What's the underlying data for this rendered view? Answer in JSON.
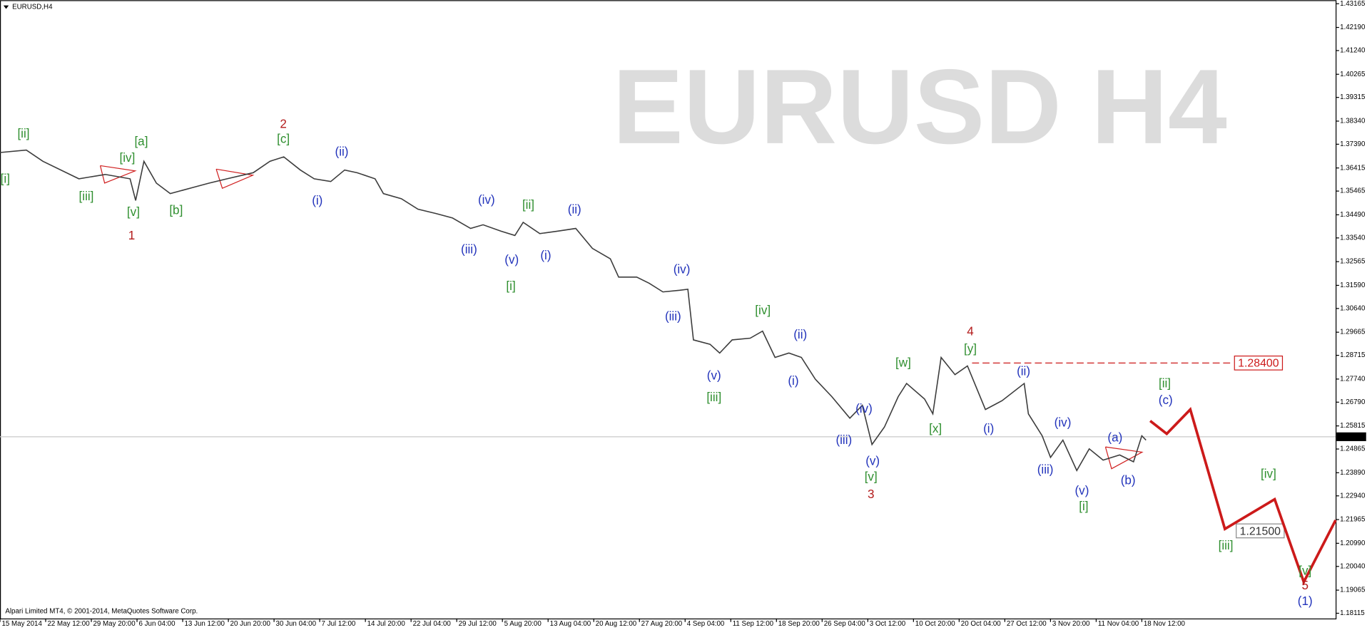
{
  "chart_data": {
    "type": "line",
    "title": "EURUSD,H4",
    "watermark": "EURUSD H4",
    "footer": "Alpari Limited MT4, © 2001-2014, MetaQuotes Software Corp.",
    "grid": false,
    "xlim": [
      0,
      965
    ],
    "xticks": [
      {
        "value": 0,
        "label": "15 May 2014"
      },
      {
        "value": 33,
        "label": "22 May 12:00"
      },
      {
        "value": 66,
        "label": "29 May 20:00"
      },
      {
        "value": 99,
        "label": "6 Jun 04:00"
      },
      {
        "value": 132,
        "label": "13 Jun 12:00"
      },
      {
        "value": 165,
        "label": "20 Jun 20:00"
      },
      {
        "value": 198,
        "label": "30 Jun 04:00"
      },
      {
        "value": 231,
        "label": "7 Jul 12:00"
      },
      {
        "value": 264,
        "label": "14 Jul 20:00"
      },
      {
        "value": 297,
        "label": "22 Jul 04:00"
      },
      {
        "value": 330,
        "label": "29 Jul 12:00"
      },
      {
        "value": 363,
        "label": "5 Aug 20:00"
      },
      {
        "value": 396,
        "label": "13 Aug 04:00"
      },
      {
        "value": 429,
        "label": "20 Aug 12:00"
      },
      {
        "value": 462,
        "label": "27 Aug 20:00"
      },
      {
        "value": 495,
        "label": "4 Sep 04:00"
      },
      {
        "value": 528,
        "label": "11 Sep 12:00"
      },
      {
        "value": 561,
        "label": "18 Sep 20:00"
      },
      {
        "value": 594,
        "label": "26 Sep 04:00"
      },
      {
        "value": 627,
        "label": "3 Oct 12:00"
      },
      {
        "value": 660,
        "label": "10 Oct 20:00"
      },
      {
        "value": 693,
        "label": "20 Oct 04:00"
      },
      {
        "value": 726,
        "label": "27 Oct 12:00"
      },
      {
        "value": 759,
        "label": "3 Nov 20:00"
      },
      {
        "value": 792,
        "label": "11 Nov 04:00"
      },
      {
        "value": 825,
        "label": "18 Nov 12:00"
      }
    ],
    "ylim": [
      1.179,
      1.4331
    ],
    "yticks": [
      1.43165,
      {
        "value": 1.4219,
        "label": "1.42190"
      },
      {
        "value": 1.4124,
        "label": "1.41240"
      },
      1.40265,
      1.39315,
      {
        "value": 1.3834,
        "label": "1.38340"
      },
      {
        "value": 1.3739,
        "label": "1.37390"
      },
      1.36415,
      1.35465,
      {
        "value": 1.3449,
        "label": "1.34490"
      },
      {
        "value": 1.3354,
        "label": "1.33540"
      },
      1.32565,
      {
        "value": 1.3159,
        "label": "1.31590"
      },
      {
        "value": 1.3064,
        "label": "1.30640"
      },
      1.29665,
      1.28715,
      {
        "value": 1.2774,
        "label": "1.27740"
      },
      {
        "value": 1.2679,
        "label": "1.26790"
      },
      1.25815,
      1.24865,
      {
        "value": 1.2389,
        "label": "1.23890"
      },
      {
        "value": 1.2294,
        "label": "1.22940"
      },
      1.21965,
      {
        "value": 1.2099,
        "label": "1.20990"
      },
      {
        "value": 1.2004,
        "label": "1.20040"
      },
      1.19065,
      1.18115
    ],
    "series": [
      {
        "color": "#3c3c3c",
        "x": [
          0,
          19,
          31,
          57,
          76,
          94,
          98,
          104,
          113,
          123,
          139,
          151,
          164,
          183,
          195,
          205,
          217,
          227,
          239,
          249,
          258,
          271,
          277,
          290,
          302,
          315,
          327,
          340,
          349,
          362,
          372,
          378,
          390,
          403,
          416,
          428,
          441,
          447,
          460,
          469,
          479,
          491,
          497,
          501,
          513,
          520,
          529,
          542,
          551,
          560,
          570,
          579,
          589,
          601,
          614,
          623,
          630,
          639,
          649,
          655,
          668,
          674,
          680,
          690,
          699,
          712,
          724,
          740,
          743,
          753,
          759,
          768,
          778,
          787,
          797,
          809,
          819,
          825,
          828
        ],
        "values": [
          1.3705,
          1.3715,
          1.3669,
          1.3597,
          1.3615,
          1.3597,
          1.3508,
          1.3669,
          1.3579,
          1.3536,
          1.3561,
          1.3579,
          1.3597,
          1.3622,
          1.3669,
          1.3687,
          1.3633,
          1.3597,
          1.3586,
          1.3633,
          1.3622,
          1.3597,
          1.3536,
          1.3515,
          1.3472,
          1.3454,
          1.3436,
          1.3393,
          1.3408,
          1.3382,
          1.3364,
          1.3418,
          1.3372,
          1.3382,
          1.3393,
          1.3311,
          1.3268,
          1.3193,
          1.3193,
          1.3168,
          1.3132,
          1.3139,
          1.3143,
          1.2935,
          1.2917,
          1.2881,
          1.2935,
          1.2942,
          1.2971,
          1.2863,
          1.2881,
          1.2863,
          1.2774,
          1.2702,
          1.2613,
          1.2666,
          1.2505,
          1.2577,
          1.2702,
          1.2756,
          1.2692,
          1.2631,
          1.2863,
          1.2792,
          1.2828,
          1.2649,
          1.2685,
          1.2756,
          1.2631,
          1.2541,
          1.2452,
          1.2523,
          1.2398,
          1.2487,
          1.2441,
          1.2462,
          1.2434,
          1.2541,
          1.2523
        ]
      },
      {
        "color": "#cc1a1a",
        "x": [
          831,
          843,
          860,
          885,
          921,
          942,
          965
        ],
        "values": [
          1.2602,
          1.2549,
          1.2649,
          1.2158,
          1.228,
          1.194,
          1.2194
        ]
      }
    ],
    "levels": [
      {
        "value": 1.284,
        "label": "1.28400",
        "color": "#cc1a1a"
      },
      {
        "value": 1.215,
        "label": "1.21500",
        "color": "#8a8a8a"
      }
    ],
    "current_price": 1.25369,
    "annotations": [
      {
        "text": "[i]",
        "color": "#2f8f2f"
      },
      {
        "text": "[ii]",
        "color": "#2f8f2f"
      },
      {
        "text": "[iii]",
        "color": "#2f8f2f"
      },
      {
        "text": "[iv]",
        "color": "#2f8f2f"
      },
      {
        "text": "[v]",
        "color": "#2f8f2f"
      },
      {
        "text": "1",
        "color": "#b31b1b"
      },
      {
        "text": "[a]",
        "color": "#2f8f2f"
      },
      {
        "text": "[b]",
        "color": "#2f8f2f"
      },
      {
        "text": "2",
        "color": "#b31b1b"
      },
      {
        "text": "[c]",
        "color": "#2f8f2f"
      },
      {
        "text": "(ii)",
        "color": "#2233bb"
      },
      {
        "text": "(i)",
        "color": "#2233bb"
      },
      {
        "text": "(iii)",
        "color": "#2233bb"
      },
      {
        "text": "(iv)",
        "color": "#2233bb"
      },
      {
        "text": "(v)",
        "color": "#2233bb"
      },
      {
        "text": "[i]",
        "color": "#2f8f2f"
      },
      {
        "text": "[ii]",
        "color": "#2f8f2f"
      },
      {
        "text": "(i)",
        "color": "#2233bb"
      },
      {
        "text": "(ii)",
        "color": "#2233bb"
      },
      {
        "text": "(iii)",
        "color": "#2233bb"
      },
      {
        "text": "(iv)",
        "color": "#2233bb"
      },
      {
        "text": "(v)",
        "color": "#2233bb"
      },
      {
        "text": "[iii]",
        "color": "#2f8f2f"
      },
      {
        "text": "[iv]",
        "color": "#2f8f2f"
      },
      {
        "text": "(i)",
        "color": "#2233bb"
      },
      {
        "text": "(ii)",
        "color": "#2233bb"
      },
      {
        "text": "(iii)",
        "color": "#2233bb"
      },
      {
        "text": "(iv)",
        "color": "#2233bb"
      },
      {
        "text": "(v)",
        "color": "#2233bb"
      },
      {
        "text": "[v]",
        "color": "#2f8f2f"
      },
      {
        "text": "3",
        "color": "#b31b1b"
      },
      {
        "text": "[w]",
        "color": "#2f8f2f"
      },
      {
        "text": "[x]",
        "color": "#2f8f2f"
      },
      {
        "text": "4",
        "color": "#b31b1b"
      },
      {
        "text": "[y]",
        "color": "#2f8f2f"
      },
      {
        "text": "(i)",
        "color": "#2233bb"
      },
      {
        "text": "(ii)",
        "color": "#2233bb"
      },
      {
        "text": "(iii)",
        "color": "#2233bb"
      },
      {
        "text": "(iv)",
        "color": "#2233bb"
      },
      {
        "text": "(v)",
        "color": "#2233bb"
      },
      {
        "text": "[i]",
        "color": "#2f8f2f"
      },
      {
        "text": "(a)",
        "color": "#2233bb"
      },
      {
        "text": "(b)",
        "color": "#2233bb"
      },
      {
        "text": "[ii]",
        "color": "#2f8f2f"
      },
      {
        "text": "(c)",
        "color": "#2233bb"
      },
      {
        "text": "[iv]",
        "color": "#2f8f2f"
      },
      {
        "text": "[iii]",
        "color": "#2f8f2f"
      },
      {
        "text": "[v]",
        "color": "#2f8f2f"
      },
      {
        "text": "5",
        "color": "#b31b1b"
      },
      {
        "text": "(1)",
        "color": "#2233bb"
      }
    ]
  }
}
